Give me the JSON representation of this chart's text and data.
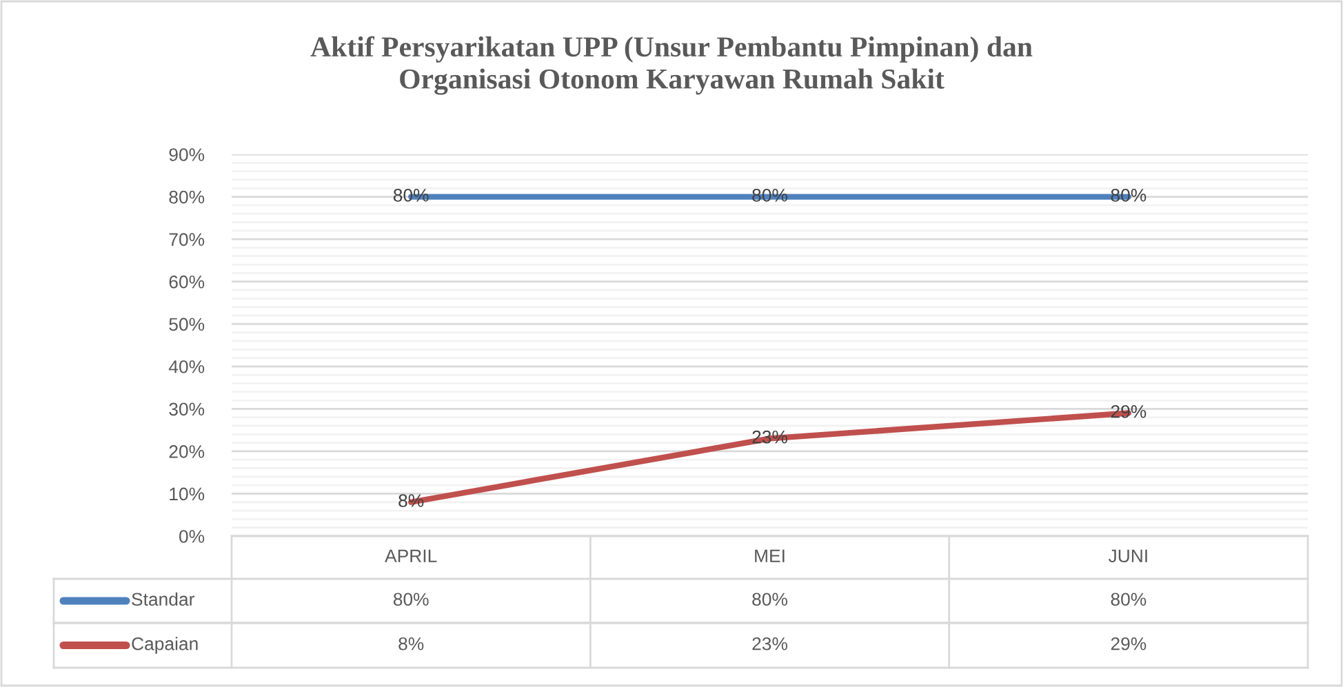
{
  "chart_data": {
    "type": "line",
    "title": "Aktif Persyarikatan UPP (Unsur Pembantu Pimpinan) dan\nOrganisasi Otonom Karyawan Rumah Sakit",
    "categories": [
      "APRIL",
      "MEI",
      "JUNI"
    ],
    "series": [
      {
        "name": "Standar",
        "color": "#4f81bd",
        "values": [
          80,
          80,
          80
        ],
        "value_labels": [
          "80%",
          "80%",
          "80%"
        ]
      },
      {
        "name": "Capaian",
        "color": "#c0504d",
        "values": [
          8,
          23,
          29
        ],
        "value_labels": [
          "8%",
          "23%",
          "29%"
        ]
      }
    ],
    "ylim": [
      0,
      90
    ],
    "yticks": [
      {
        "value": 0,
        "label": "0%"
      },
      {
        "value": 10,
        "label": "10%"
      },
      {
        "value": 20,
        "label": "20%"
      },
      {
        "value": 30,
        "label": "30%"
      },
      {
        "value": 40,
        "label": "40%"
      },
      {
        "value": 50,
        "label": "50%"
      },
      {
        "value": 60,
        "label": "60%"
      },
      {
        "value": 70,
        "label": "70%"
      },
      {
        "value": 80,
        "label": "80%"
      },
      {
        "value": 90,
        "label": "90%"
      }
    ],
    "grid": "y",
    "legend": "bottom",
    "line_style": "solid",
    "marker": "none"
  }
}
